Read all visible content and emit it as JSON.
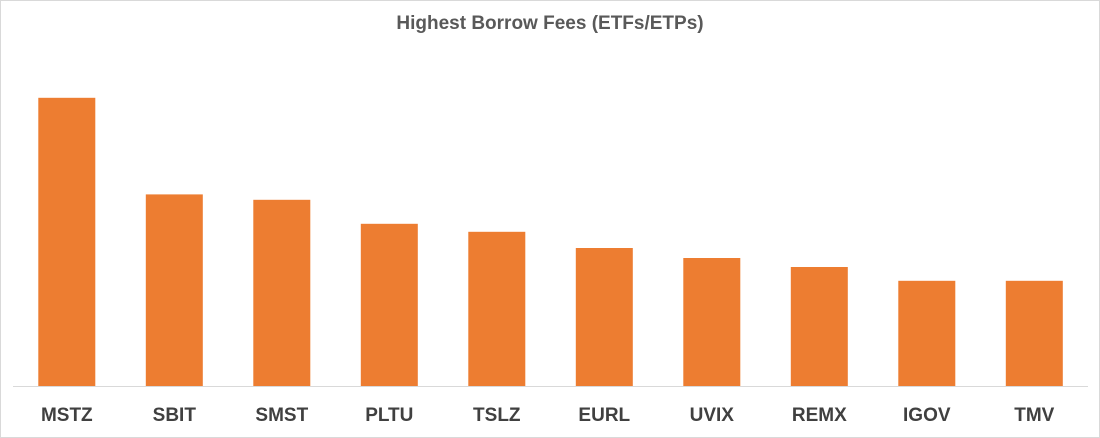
{
  "chart_data": {
    "type": "bar",
    "title": "Highest Borrow Fees (ETFs/ETPs)",
    "xlabel": "",
    "ylabel": "",
    "categories": [
      "MSTZ",
      "SBIT",
      "SMST",
      "PLTU",
      "TSLZ",
      "EURL",
      "UVIX",
      "REMX",
      "IGOV",
      "TMV"
    ],
    "values": [
      100,
      66.5,
      64.6,
      56.3,
      53.5,
      47.9,
      44.4,
      41.3,
      36.5,
      36.5
    ],
    "ylim": [
      0,
      110
    ],
    "grid": false,
    "bar_color": "#ED7D31",
    "axis_color": "#d9d9d9",
    "label_color": "#404040"
  }
}
